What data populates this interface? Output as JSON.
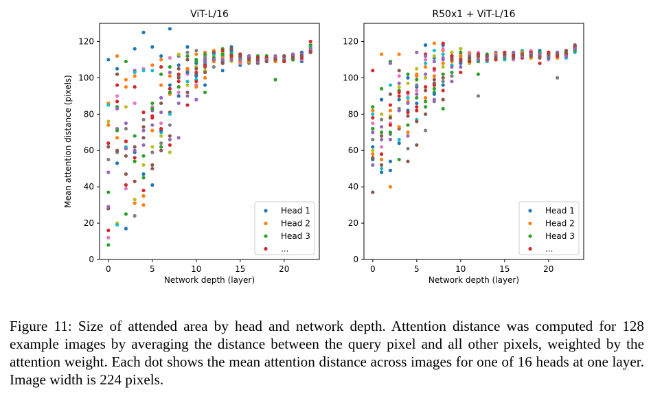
{
  "caption": "Figure 11: Size of attended area by head and network depth. Attention distance was computed for 128 example images by averaging the distance between the query pixel and all other pixels, weighted by the attention weight. Each dot shows the mean attention distance across images for one of 16 heads at one layer. Image width is 224 pixels.",
  "colors": [
    "#1f77b4",
    "#ff7f0e",
    "#2ca02c",
    "#d62728",
    "#9467bd",
    "#8c564b",
    "#e377c2",
    "#7f7f7f",
    "#bcbd22",
    "#17becf"
  ],
  "chart_data": [
    {
      "type": "scatter",
      "title": "ViT-L/16",
      "xlabel": "Network depth (layer)",
      "ylabel": "Mean attention distance (pixels)",
      "xlim": [
        -1,
        24
      ],
      "ylim": [
        0,
        130
      ],
      "xticks": [
        0,
        5,
        10,
        15,
        20
      ],
      "yticks": [
        0,
        20,
        40,
        60,
        80,
        100,
        120
      ],
      "legend": {
        "placement": "lower-right",
        "entries": [
          "Head 1",
          "Head 2",
          "Head 3",
          "..."
        ]
      },
      "layers": [
        [
          110,
          86,
          37,
          64,
          48,
          28,
          12,
          55,
          76,
          85,
          74,
          74,
          8,
          16,
          29,
          62
        ],
        [
          105,
          112,
          84,
          96,
          72,
          102,
          90,
          59,
          20,
          19,
          53,
          67,
          71,
          87,
          83,
          60
        ],
        [
          17,
          99,
          109,
          41,
          75,
          57,
          39,
          72,
          84,
          62,
          65,
          95,
          25,
          65,
          61,
          47
        ],
        [
          116,
          101,
          68,
          95,
          104,
          62,
          86,
          24,
          33,
          103,
          59,
          31,
          54,
          56,
          60,
          43
        ],
        [
          125,
          30,
          45,
          81,
          63,
          67,
          105,
          77,
          52,
          104,
          47,
          35,
          57,
          38,
          71,
          73
        ],
        [
          117,
          107,
          86,
          78,
          82,
          50,
          84,
          59,
          62,
          104,
          41,
          71,
          83,
          79,
          74,
          52
        ],
        [
          112,
          96,
          102,
          106,
          89,
          86,
          75,
          64,
          68,
          70,
          71,
          110,
          62,
          72,
          81,
          60
        ],
        [
          127,
          91,
          106,
          94,
          103,
          81,
          111,
          74,
          59,
          80,
          96,
          101,
          92,
          63,
          66,
          68
        ],
        [
          107,
          90,
          112,
          98,
          86,
          105,
          92,
          112,
          113,
          101,
          90,
          95,
          95,
          102,
          67,
          100
        ],
        [
          117,
          104,
          110,
          98,
          105,
          110,
          102,
          114,
          96,
          98,
          103,
          105,
          112,
          85,
          90,
          92
        ],
        [
          108,
          113,
          109,
          103,
          110,
          102,
          96,
          115,
          106,
          99,
          101,
          95,
          110,
          98,
          88,
          105
        ],
        [
          110,
          114,
          92,
          109,
          110,
          106,
          112,
          111,
          104,
          108,
          96,
          100,
          113,
          107,
          109,
          103
        ],
        [
          110,
          115,
          114,
          111,
          113,
          109,
          110,
          106,
          112,
          113,
          114,
          109,
          111,
          110,
          110,
          114
        ],
        [
          104,
          108,
          116,
          113,
          110,
          112,
          111,
          109,
          114,
          112,
          109,
          111,
          113,
          115,
          110,
          108
        ],
        [
          117,
          113,
          111,
          115,
          112,
          110,
          112,
          113,
          109,
          114,
          115,
          111,
          113,
          112,
          110,
          116
        ],
        [
          107,
          112,
          111,
          110,
          113,
          109,
          108,
          112,
          111,
          110,
          112,
          109,
          111,
          113,
          110,
          112
        ],
        [
          110,
          112,
          111,
          109,
          110,
          112,
          111,
          108,
          110,
          111,
          112,
          109,
          110,
          111,
          112,
          110
        ],
        [
          110,
          111,
          109,
          112,
          110,
          108,
          111,
          112,
          110,
          109,
          111,
          110,
          112,
          111,
          109,
          110
        ],
        [
          110,
          112,
          111,
          110,
          109,
          110,
          112,
          111,
          110,
          109,
          111,
          110,
          112,
          111,
          110,
          109
        ],
        [
          111,
          110,
          99,
          112,
          110,
          111,
          109,
          110,
          112,
          111,
          110,
          109,
          110,
          111,
          112,
          110
        ],
        [
          111,
          112,
          109,
          110,
          111,
          112,
          110,
          109,
          111,
          110,
          112,
          111,
          110,
          109,
          111,
          112
        ],
        [
          112,
          111,
          113,
          110,
          111,
          112,
          113,
          110,
          111,
          112,
          113,
          111,
          110,
          112,
          113,
          111
        ],
        [
          109,
          113,
          112,
          114,
          111,
          112,
          110,
          113,
          112,
          111,
          114,
          113,
          112,
          111,
          113,
          112
        ],
        [
          117,
          116,
          114,
          120,
          115,
          118,
          114,
          116,
          115,
          117,
          114,
          116,
          118,
          115,
          116,
          114
        ]
      ]
    },
    {
      "type": "scatter",
      "title": "R50x1 + ViT-L/16",
      "xlabel": "Network depth (layer)",
      "ylabel": "",
      "xlim": [
        -1,
        24
      ],
      "ylim": [
        0,
        130
      ],
      "xticks": [
        0,
        5,
        10,
        15,
        20
      ],
      "yticks": [
        0,
        20,
        40,
        60,
        80,
        100,
        120
      ],
      "legend": {
        "placement": "lower-right",
        "entries": [
          "Head 1",
          "Head 2",
          "Head 3",
          "..."
        ]
      },
      "layers": [
        [
          55,
          82,
          72,
          104,
          70,
          37,
          75,
          66,
          60,
          80,
          62,
          58,
          84,
          78,
          52,
          56
        ],
        [
          48,
          113,
          94,
          88,
          73,
          68,
          62,
          77,
          80,
          50,
          88,
          55,
          70,
          58,
          66,
          52
        ],
        [
          49,
          40,
          109,
          85,
          108,
          91,
          75,
          69,
          79,
          96,
          54,
          82,
          70,
          74,
          66,
          78
        ],
        [
          64,
          113,
          93,
          90,
          97,
          72,
          101,
          83,
          95,
          66,
          88,
          73,
          55,
          92,
          82,
          104
        ],
        [
          82,
          87,
          102,
          81,
          68,
          54,
          91,
          61,
          97,
          89,
          100,
          70,
          74,
          92,
          86,
          79
        ],
        [
          95,
          102,
          99,
          84,
          114,
          63,
          93,
          96,
          105,
          77,
          86,
          101,
          89,
          82,
          91,
          76
        ],
        [
          118,
          106,
          87,
          113,
          112,
          80,
          110,
          71,
          100,
          108,
          118,
          89,
          84,
          95,
          102,
          93
        ],
        [
          111,
          119,
          92,
          96,
          109,
          97,
          104,
          87,
          112,
          115,
          91,
          101,
          94,
          105,
          88,
          99
        ],
        [
          118,
          115,
          83,
          93,
          110,
          88,
          116,
          98,
          106,
          113,
          96,
          108,
          102,
          119,
          111,
          100
        ],
        [
          112,
          106,
          109,
          114,
          98,
          111,
          110,
          101,
          114,
          107,
          112,
          109,
          103,
          112,
          106,
          110
        ],
        [
          116,
          114,
          110,
          103,
          110,
          112,
          113,
          109,
          116,
          111,
          108,
          112,
          114,
          110,
          106,
          109
        ],
        [
          113,
          110,
          112,
          111,
          113,
          109,
          114,
          110,
          108,
          112,
          111,
          113,
          110,
          109,
          112,
          111
        ],
        [
          110,
          113,
          102,
          112,
          111,
          109,
          114,
          90,
          113,
          110,
          112,
          111,
          109,
          113,
          110,
          112
        ],
        [
          111,
          112,
          113,
          109,
          110,
          112,
          111,
          113,
          110,
          109,
          111,
          112,
          113,
          110,
          111,
          112
        ],
        [
          113,
          112,
          111,
          110,
          114,
          111,
          112,
          113,
          110,
          111,
          112,
          113,
          111,
          110,
          112,
          111
        ],
        [
          112,
          113,
          111,
          114,
          110,
          112,
          113,
          111,
          112,
          110,
          113,
          112,
          111,
          114,
          112,
          113
        ],
        [
          113,
          112,
          114,
          111,
          112,
          113,
          110,
          112,
          114,
          113,
          111,
          112,
          113,
          112,
          114,
          111
        ],
        [
          114,
          113,
          112,
          115,
          111,
          113,
          114,
          112,
          113,
          115,
          112,
          114,
          113,
          111,
          112,
          113
        ],
        [
          112,
          114,
          113,
          111,
          114,
          112,
          115,
          113,
          112,
          114,
          113,
          111,
          112,
          114,
          113,
          112
        ],
        [
          113,
          112,
          114,
          108,
          113,
          111,
          112,
          114,
          113,
          112,
          115,
          113,
          114,
          112,
          113,
          111
        ],
        [
          112,
          113,
          111,
          114,
          112,
          113,
          110,
          112,
          114,
          113,
          111,
          112,
          113,
          114,
          112,
          113
        ],
        [
          114,
          112,
          113,
          111,
          114,
          113,
          112,
          100,
          113,
          114,
          112,
          111,
          113,
          112,
          114,
          113
        ],
        [
          111,
          114,
          113,
          112,
          114,
          115,
          113,
          112,
          114,
          111,
          113,
          112,
          114,
          113,
          112,
          115
        ],
        [
          118,
          116,
          117,
          115,
          116,
          117,
          118,
          115,
          116,
          114,
          117,
          116,
          115,
          117,
          116,
          118
        ]
      ]
    }
  ]
}
